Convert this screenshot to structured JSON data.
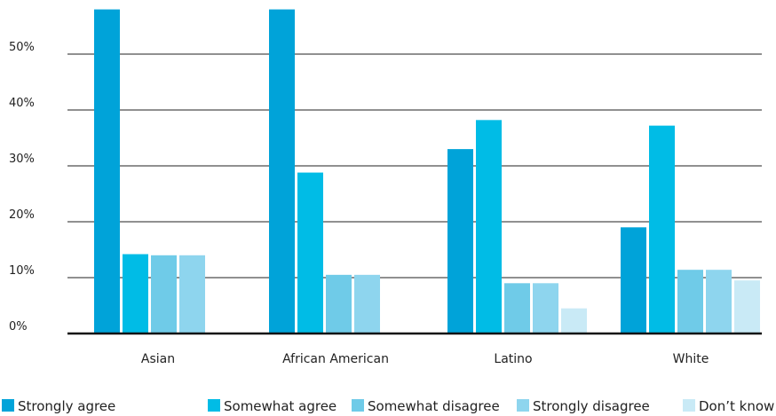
{
  "chart_data": {
    "type": "bar",
    "categories": [
      "Asian",
      "African American",
      "Latino",
      "White"
    ],
    "series": [
      {
        "name": "Strongly agree",
        "color": "#00a3d9",
        "values": [
          58,
          58,
          33,
          19
        ]
      },
      {
        "name": "Somewhat agree",
        "color": "#00bce6",
        "values": [
          14.2,
          28.8,
          38.2,
          37.2
        ]
      },
      {
        "name": "Somewhat disagree",
        "color": "#6fcbe8",
        "values": [
          14,
          10.5,
          9,
          11.4
        ]
      },
      {
        "name": "Strongly disagree",
        "color": "#8ed5ee",
        "values": [
          14,
          10.5,
          9,
          11.4
        ]
      },
      {
        "name": "Don’t know",
        "color": "#c9eaf6",
        "values": [
          null,
          null,
          4.5,
          9.5
        ]
      }
    ],
    "yticks": [
      "0%",
      "10%",
      "20%",
      "30%",
      "40%",
      "50%"
    ],
    "ylim": [
      0,
      60
    ],
    "grid": true,
    "legend_position": "bottom"
  }
}
